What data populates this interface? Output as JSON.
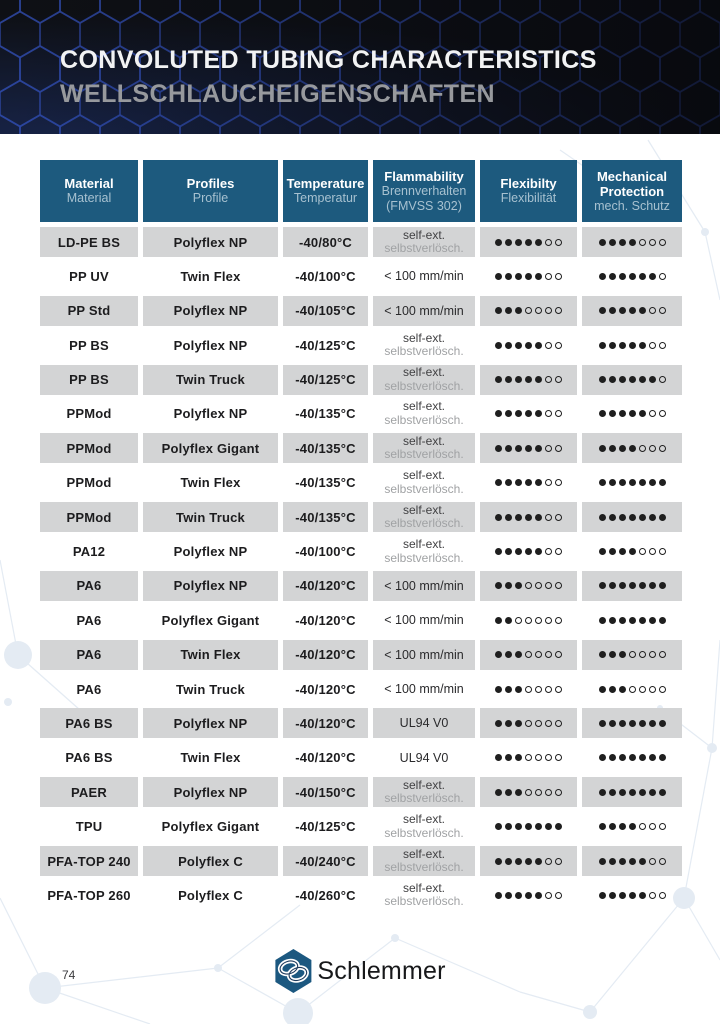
{
  "banner": {
    "title": "CONVOLUTED TUBING CHARACTERISTICS",
    "subtitle": "WELLSCHLAUCHEIGENSCHAFTEN"
  },
  "table": {
    "rating_max": 7,
    "columns": [
      {
        "strong": [
          "Material"
        ],
        "light": [
          "Material"
        ]
      },
      {
        "strong": [
          "Profiles"
        ],
        "light": [
          "Profile"
        ]
      },
      {
        "strong": [
          "Temperature"
        ],
        "light": [
          "Temperatur"
        ]
      },
      {
        "strong": [
          "Flammability"
        ],
        "light": [
          "Brennverhalten",
          "(FMVSS 302)"
        ]
      },
      {
        "strong": [
          "Flexibilty"
        ],
        "light": [
          "Flexibilität"
        ]
      },
      {
        "strong": [
          "Mechanical",
          "Protection"
        ],
        "light": [
          "mech. Schutz"
        ]
      }
    ],
    "rows": [
      {
        "material": "LD-PE BS",
        "profile": "Polyflex NP",
        "temperature": "-40/80°C",
        "flam1": "self-ext.",
        "flam2": "selbstverlösch.",
        "flex": 5,
        "mech": 4
      },
      {
        "material": "PP UV",
        "profile": "Twin Flex",
        "temperature": "-40/100°C",
        "flam1": "< 100 mm/min",
        "flam2": "",
        "flex": 5,
        "mech": 6
      },
      {
        "material": "PP Std",
        "profile": "Polyflex NP",
        "temperature": "-40/105°C",
        "flam1": "< 100 mm/min",
        "flam2": "",
        "flex": 3,
        "mech": 5
      },
      {
        "material": "PP BS",
        "profile": "Polyflex NP",
        "temperature": "-40/125°C",
        "flam1": "self-ext.",
        "flam2": "selbstverlösch.",
        "flex": 5,
        "mech": 5
      },
      {
        "material": "PP BS",
        "profile": "Twin Truck",
        "temperature": "-40/125°C",
        "flam1": "self-ext.",
        "flam2": "selbstverlösch.",
        "flex": 5,
        "mech": 6
      },
      {
        "material": "PPMod",
        "profile": "Polyflex NP",
        "temperature": "-40/135°C",
        "flam1": "self-ext.",
        "flam2": "selbstverlösch.",
        "flex": 5,
        "mech": 5
      },
      {
        "material": "PPMod",
        "profile": "Polyflex Gigant",
        "temperature": "-40/135°C",
        "flam1": "self-ext.",
        "flam2": "selbstverlösch.",
        "flex": 5,
        "mech": 4
      },
      {
        "material": "PPMod",
        "profile": "Twin Flex",
        "temperature": "-40/135°C",
        "flam1": "self-ext.",
        "flam2": "selbstverlösch.",
        "flex": 5,
        "mech": 7
      },
      {
        "material": "PPMod",
        "profile": "Twin Truck",
        "temperature": "-40/135°C",
        "flam1": "self-ext.",
        "flam2": "selbstverlösch.",
        "flex": 5,
        "mech": 7
      },
      {
        "material": "PA12",
        "profile": "Polyflex NP",
        "temperature": "-40/100°C",
        "flam1": "self-ext.",
        "flam2": "selbstverlösch.",
        "flex": 5,
        "mech": 4
      },
      {
        "material": "PA6",
        "profile": "Polyflex NP",
        "temperature": "-40/120°C",
        "flam1": "< 100 mm/min",
        "flam2": "",
        "flex": 3,
        "mech": 7
      },
      {
        "material": "PA6",
        "profile": "Polyflex Gigant",
        "temperature": "-40/120°C",
        "flam1": "< 100 mm/min",
        "flam2": "",
        "flex": 2,
        "mech": 7
      },
      {
        "material": "PA6",
        "profile": "Twin Flex",
        "temperature": "-40/120°C",
        "flam1": "< 100 mm/min",
        "flam2": "",
        "flex": 3,
        "mech": 3
      },
      {
        "material": "PA6",
        "profile": "Twin Truck",
        "temperature": "-40/120°C",
        "flam1": "< 100 mm/min",
        "flam2": "",
        "flex": 3,
        "mech": 3
      },
      {
        "material": "PA6 BS",
        "profile": "Polyflex NP",
        "temperature": "-40/120°C",
        "flam1": "UL94 V0",
        "flam2": "",
        "flex": 3,
        "mech": 7
      },
      {
        "material": "PA6 BS",
        "profile": "Twin Flex",
        "temperature": "-40/120°C",
        "flam1": "UL94 V0",
        "flam2": "",
        "flex": 3,
        "mech": 7
      },
      {
        "material": "PAER",
        "profile": "Polyflex NP",
        "temperature": "-40/150°C",
        "flam1": "self-ext.",
        "flam2": "selbstverlösch.",
        "flex": 3,
        "mech": 7
      },
      {
        "material": "TPU",
        "profile": "Polyflex Gigant",
        "temperature": "-40/125°C",
        "flam1": "self-ext.",
        "flam2": "selbstverlösch.",
        "flex": 7,
        "mech": 4
      },
      {
        "material": "PFA-TOP 240",
        "profile": "Polyflex C",
        "temperature": "-40/240°C",
        "flam1": "self-ext.",
        "flam2": "selbstverlösch.",
        "flex": 5,
        "mech": 5
      },
      {
        "material": "PFA-TOP 260",
        "profile": "Polyflex C",
        "temperature": "-40/260°C",
        "flam1": "self-ext.",
        "flam2": "selbstverlösch.",
        "flex": 5,
        "mech": 5
      }
    ]
  },
  "footer": {
    "page_number": "74",
    "brand": "Schlemmer"
  },
  "colors": {
    "header_blue": "#1d5a7e",
    "row_gray": "#d3d4d5",
    "dot_color": "#1f1f1f",
    "logo_blue": "#1c5880",
    "banner_bg": "#0e1015",
    "hex_stroke": "#2c449c"
  }
}
